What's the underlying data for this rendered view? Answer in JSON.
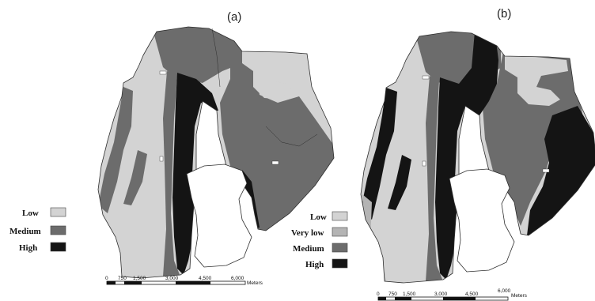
{
  "colors": {
    "very_low": "#b4b4b4",
    "low": "#d3d3d3",
    "medium": "#6c6c6c",
    "high": "#141414",
    "outline": "#2e2e2e",
    "background": "#ffffff"
  },
  "map_a": {
    "label": "(a)",
    "legend": [
      {
        "label": "Low",
        "class": "low"
      },
      {
        "label": "Medium",
        "class": "medium"
      },
      {
        "label": "High",
        "class": "high"
      }
    ],
    "scale": {
      "ticks": [
        "0",
        "750",
        "1,500",
        "3,000",
        "4,500",
        "6,000"
      ],
      "unit": "Meters"
    }
  },
  "map_b": {
    "label": "(b)",
    "legend": [
      {
        "label": "Low",
        "class": "low"
      },
      {
        "label": "Very low",
        "class": "very_low"
      },
      {
        "label": "Medium",
        "class": "medium"
      },
      {
        "label": "High",
        "class": "high"
      }
    ],
    "scale": {
      "ticks": [
        "0",
        "750",
        "1,500",
        "3,000",
        "4,500",
        "6,000"
      ],
      "unit": "Meters"
    }
  }
}
